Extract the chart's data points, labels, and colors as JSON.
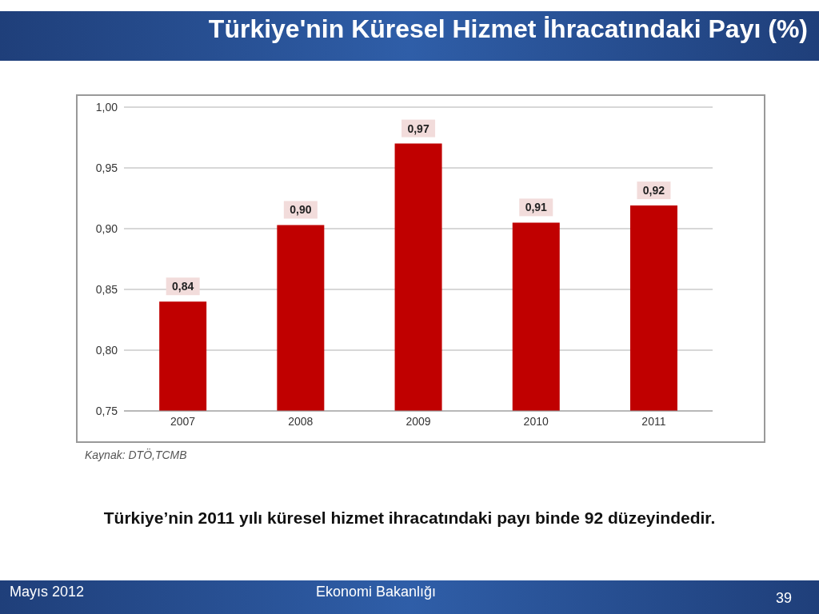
{
  "chart_data": {
    "type": "bar",
    "title": "Türkiye'nin Küresel Hizmet İhracatındaki Payı (%)",
    "categories": [
      "2007",
      "2008",
      "2009",
      "2010",
      "2011"
    ],
    "values": [
      0.84,
      0.903,
      0.97,
      0.905,
      0.919
    ],
    "value_labels": [
      "0,84",
      "0,90",
      "0,97",
      "0,91",
      "0,92"
    ],
    "color": "#c00000",
    "ylim": [
      0.75,
      1
    ],
    "yticks": [
      {
        "value": 0.75,
        "label": "0,75"
      },
      {
        "value": 0.8,
        "label": "0,80"
      },
      {
        "value": 0.85,
        "label": "0,85"
      },
      {
        "value": 0.9,
        "label": "0,90"
      },
      {
        "value": 0.95,
        "label": "0,95"
      },
      {
        "value": 1,
        "label": "1,00"
      }
    ],
    "grid": "y",
    "annotations": [
      "Kaynak: DTÖ,TCMB",
      "Türkiye’nin 2011 yılı küresel hizmet ihracatındaki payı binde 92 düzeyindedir.",
      "Mayıs 2012",
      "Ekonomi Bakanlığı",
      "39"
    ]
  }
}
